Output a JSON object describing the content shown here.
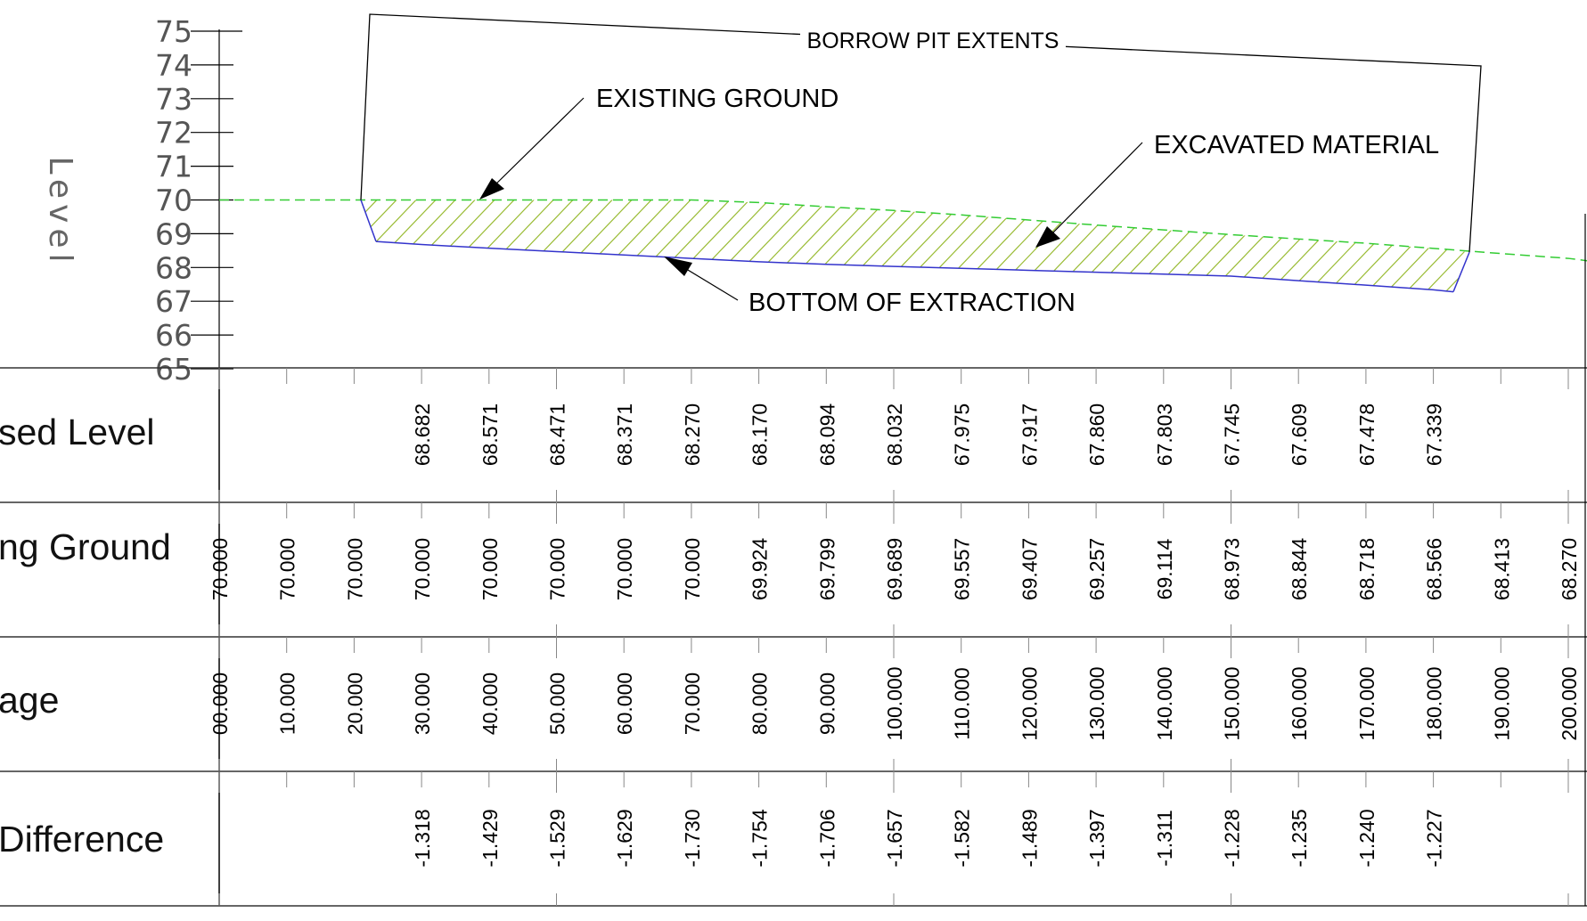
{
  "annotations": {
    "borrow_pit_extents": "BORROW PIT EXTENTS",
    "existing_ground": "EXISTING GROUND",
    "excavated_material": "EXCAVATED MATERIAL",
    "bottom_of_extraction": "BOTTOM OF EXTRACTION"
  },
  "axis": {
    "label": "Level",
    "ticks": [
      "75",
      "74",
      "73",
      "72",
      "71",
      "70",
      "69",
      "68",
      "67",
      "66",
      "65"
    ]
  },
  "table": {
    "row_labels": {
      "proposed_level": "sed Level",
      "existing_ground": "ng Ground",
      "chainage": "age",
      "difference": "Difference"
    }
  },
  "colors": {
    "existing_ground_line": "#33cc33",
    "bottom_line": "#3333cc",
    "hatch": "#99bb33",
    "ink": "#000000",
    "axis_grey": "#555555"
  },
  "chart_data": {
    "type": "line",
    "y_range": [
      65,
      75
    ],
    "series": [
      {
        "name": "EXISTING GROUND",
        "x": [
          0,
          10,
          20,
          30,
          40,
          50,
          60,
          70,
          80,
          90,
          100,
          110,
          120,
          130,
          140,
          150,
          160,
          170,
          180,
          190,
          200
        ],
        "values": [
          70.0,
          70.0,
          70.0,
          70.0,
          70.0,
          70.0,
          70.0,
          70.0,
          69.924,
          69.799,
          69.689,
          69.557,
          69.407,
          69.257,
          69.114,
          68.973,
          68.844,
          68.718,
          68.566,
          68.413,
          68.27
        ]
      },
      {
        "name": "BOTTOM OF EXTRACTION",
        "x": [
          30,
          40,
          50,
          60,
          70,
          80,
          90,
          100,
          110,
          120,
          130,
          140,
          150,
          160,
          170,
          180
        ],
        "values": [
          68.682,
          68.571,
          68.471,
          68.371,
          68.27,
          68.17,
          68.094,
          68.032,
          67.975,
          67.917,
          67.86,
          67.803,
          67.745,
          67.609,
          67.478,
          67.339
        ]
      }
    ],
    "rows": {
      "proposed_level": {
        "x": [
          30,
          40,
          50,
          60,
          70,
          80,
          90,
          100,
          110,
          120,
          130,
          140,
          150,
          160,
          170,
          180
        ],
        "labels": [
          "68.682",
          "68.571",
          "68.471",
          "68.371",
          "68.270",
          "68.170",
          "68.094",
          "68.032",
          "67.975",
          "67.917",
          "67.860",
          "67.803",
          "67.745",
          "67.609",
          "67.478",
          "67.339"
        ]
      },
      "existing_ground": {
        "x": [
          0,
          10,
          20,
          30,
          40,
          50,
          60,
          70,
          80,
          90,
          100,
          110,
          120,
          130,
          140,
          150,
          160,
          170,
          180,
          190,
          200
        ],
        "labels": [
          "70.000",
          "70.000",
          "70.000",
          "70.000",
          "70.000",
          "70.000",
          "70.000",
          "70.000",
          "69.924",
          "69.799",
          "69.689",
          "69.557",
          "69.407",
          "69.257",
          "69.114",
          "68.973",
          "68.844",
          "68.718",
          "68.566",
          "68.413",
          "68.270"
        ]
      },
      "chainage": {
        "x": [
          0,
          10,
          20,
          30,
          40,
          50,
          60,
          70,
          80,
          90,
          100,
          110,
          120,
          130,
          140,
          150,
          160,
          170,
          180,
          190,
          200
        ],
        "labels": [
          "00.000",
          "10.000",
          "20.000",
          "30.000",
          "40.000",
          "50.000",
          "60.000",
          "70.000",
          "80.000",
          "90.000",
          "100.000",
          "110.000",
          "120.000",
          "130.000",
          "140.000",
          "150.000",
          "160.000",
          "170.000",
          "180.000",
          "190.000",
          "200.000"
        ]
      },
      "difference": {
        "x": [
          30,
          40,
          50,
          60,
          70,
          80,
          90,
          100,
          110,
          120,
          130,
          140,
          150,
          160,
          170,
          180
        ],
        "labels": [
          "-1.318",
          "-1.429",
          "-1.529",
          "-1.629",
          "-1.730",
          "-1.754",
          "-1.706",
          "-1.657",
          "-1.582",
          "-1.489",
          "-1.397",
          "-1.311",
          "-1.228",
          "-1.235",
          "-1.240",
          "-1.227"
        ]
      }
    }
  }
}
